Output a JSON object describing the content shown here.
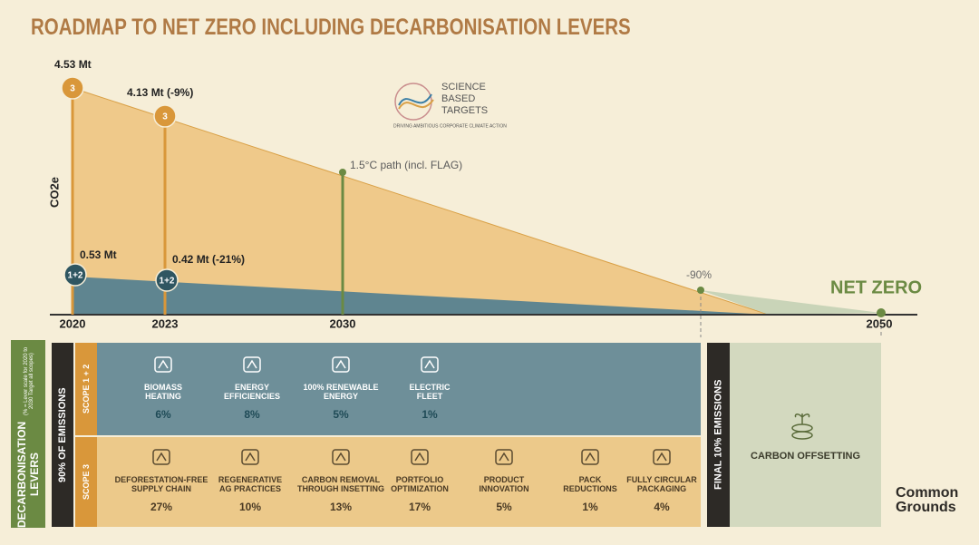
{
  "title": "ROADMAP TO NET ZERO INCLUDING DECARBONISATION LEVERS",
  "y_axis_label": "CO2e",
  "years": [
    "2020",
    "2023",
    "2030",
    "2050"
  ],
  "milestones": [
    {
      "label": "4.53 Mt",
      "badge": "3"
    },
    {
      "label": "4.13 Mt (-9%)",
      "badge": "3"
    },
    {
      "label": "0.53 Mt",
      "badge": "1+2"
    },
    {
      "label": "0.42 Mt (-21%)",
      "badge": "1+2"
    }
  ],
  "path_label": "1.5°C path (incl. FLAG)",
  "reduction_label": "-90%",
  "net_zero": "NET ZERO",
  "sbt_logo": {
    "lines": [
      "SCIENCE",
      "BASED",
      "TARGETS"
    ],
    "tagline": "DRIVING AMBITIOUS CORPORATE CLIMATE ACTION"
  },
  "levers_title": "DECARBONISATION LEVERS",
  "levers_note": "(% = Lever scale for 2020 to 2030 Target all scopes)",
  "emissions_label": "90% OF EMISSIONS",
  "scope12": {
    "label": "SCOPE 1 + 2",
    "levers": [
      {
        "lines": [
          "BIOMASS",
          "HEATING"
        ],
        "pct": "6%"
      },
      {
        "lines": [
          "ENERGY",
          "EFFICIENCIES"
        ],
        "pct": "8%"
      },
      {
        "lines": [
          "100% RENEWABLE",
          "ENERGY"
        ],
        "pct": "5%"
      },
      {
        "lines": [
          "ELECTRIC",
          "FLEET"
        ],
        "pct": "1%"
      }
    ]
  },
  "scope3": {
    "label": "SCOPE 3",
    "levers": [
      {
        "lines": [
          "DEFORESTATION-FREE",
          "SUPPLY CHAIN"
        ],
        "pct": "27%"
      },
      {
        "lines": [
          "REGENERATIVE",
          "AG PRACTICES"
        ],
        "pct": "10%"
      },
      {
        "lines": [
          "CARBON REMOVAL",
          "THROUGH INSETTING"
        ],
        "pct": "13%"
      },
      {
        "lines": [
          "PORTFOLIO",
          "OPTIMIZATION"
        ],
        "pct": "17%"
      },
      {
        "lines": [
          "PRODUCT",
          "INNOVATION"
        ],
        "pct": "5%"
      },
      {
        "lines": [
          "PACK",
          "REDUCTIONS"
        ],
        "pct": "1%"
      },
      {
        "lines": [
          "FULLY CIRCULAR",
          "PACKAGING"
        ],
        "pct": "4%"
      }
    ]
  },
  "final_label": "FINAL 10% EMISSIONS",
  "offset_label": "CARBON OFFSETTING",
  "brand": [
    "Common",
    "Grounds"
  ]
}
